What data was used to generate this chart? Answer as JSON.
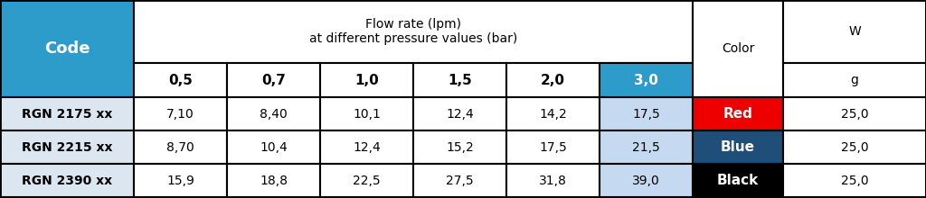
{
  "header_code": "Code",
  "header_flow_line1": "Flow rate (lpm)",
  "header_flow_line2": "at different pressure values (bar)",
  "header_color_label": "Color",
  "header_w_label": "W",
  "pressure_headers": [
    "0,5",
    "0,7",
    "1,0",
    "1,5",
    "2,0",
    "3,0"
  ],
  "weight_unit": "g",
  "rows": [
    {
      "code": "RGN 2175 xx",
      "values": [
        "7,10",
        "8,40",
        "10,1",
        "12,4",
        "14,2",
        "17,5"
      ],
      "color_label": "Red",
      "color_bg": "#ee0000",
      "color_text": "#ffffff",
      "weight": "25,0"
    },
    {
      "code": "RGN 2215 xx",
      "values": [
        "8,70",
        "10,4",
        "12,4",
        "15,2",
        "17,5",
        "21,5"
      ],
      "color_label": "Blue",
      "color_bg": "#1f4e79",
      "color_text": "#ffffff",
      "weight": "25,0"
    },
    {
      "code": "RGN 2390 xx",
      "values": [
        "15,9",
        "18,8",
        "22,5",
        "27,5",
        "31,8",
        "39,0"
      ],
      "color_label": "Black",
      "color_bg": "#000000",
      "color_text": "#ffffff",
      "weight": "25,0"
    }
  ],
  "header_bg_blue": "#2e9cca",
  "header_bg_white": "#ffffff",
  "highlight_col_bg": "#2e9cca",
  "highlight_col_text": "#ffffff",
  "data_last_col_bg": "#c5d9f1",
  "normal_col_text": "#000000",
  "data_row_bg_code": "#dce6f1",
  "data_row_bg_val": "#ffffff",
  "border_color": "#000000"
}
